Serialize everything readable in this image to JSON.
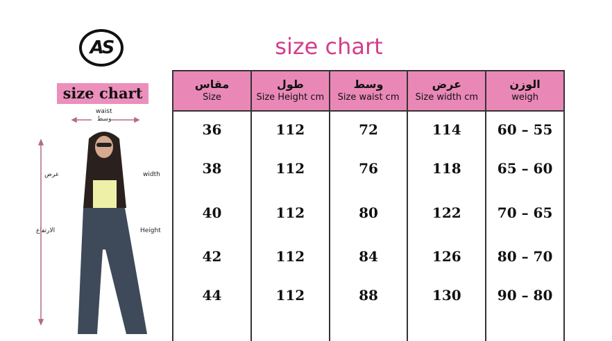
{
  "logo": "AS",
  "title": "size chart",
  "figure": {
    "label": "size chart",
    "waist_en": "waist",
    "waist_ar": "وسط",
    "width_ar": "عرض",
    "width_en": "width",
    "height_ar": "الارتفاع",
    "height_en": "Height"
  },
  "accent": "#e988b7",
  "headers": [
    {
      "ar": "مقاس",
      "en": "Size"
    },
    {
      "ar": "طول",
      "en": "Size Height cm"
    },
    {
      "ar": "وسط",
      "en": "Size waist cm"
    },
    {
      "ar": "عرض",
      "en": "Size width cm"
    },
    {
      "ar": "الوزن",
      "en": "weigh"
    }
  ],
  "rows": [
    [
      "36",
      "112",
      "72",
      "114",
      "60 – 55"
    ],
    [
      "38",
      "112",
      "76",
      "118",
      "65 – 60"
    ],
    [
      "40",
      "112",
      "80",
      "122",
      "70 – 65"
    ],
    [
      "42",
      "112",
      "84",
      "126",
      "80 – 70"
    ],
    [
      "44",
      "112",
      "88",
      "130",
      "90 – 80"
    ]
  ]
}
